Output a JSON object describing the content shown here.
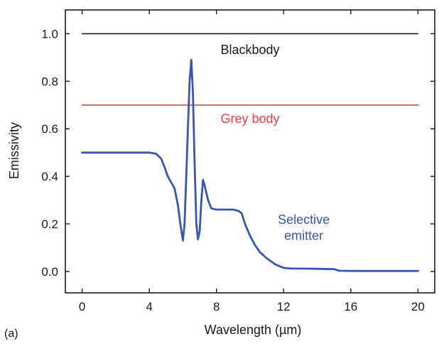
{
  "chart_data": {
    "type": "line",
    "xlabel": "Wavelength (µm)",
    "ylabel": "Emissivity",
    "panel_label": "(a)",
    "xlim": [
      -1,
      21
    ],
    "ylim": [
      -0.09,
      1.1
    ],
    "x_ticks": [
      0,
      4,
      8,
      12,
      16,
      20
    ],
    "y_ticks": [
      0.0,
      0.2,
      0.4,
      0.6,
      0.8,
      1.0
    ],
    "y_tick_labels": [
      "0.0",
      "0.2",
      "0.4",
      "0.6",
      "0.8",
      "1.0"
    ],
    "grid": false,
    "series": [
      {
        "name": "Blackbody",
        "color": "#1a1a1a",
        "x": [
          0,
          20
        ],
        "y": [
          1.0,
          1.0
        ],
        "label_at": [
          10.0,
          0.915
        ]
      },
      {
        "name": "Grey body",
        "color": "#e0434a",
        "x": [
          0,
          20
        ],
        "y": [
          0.7,
          0.7
        ],
        "label_at": [
          10.0,
          0.625
        ]
      },
      {
        "name": "Selective\nemitter",
        "color": "#3a55b0",
        "x": [
          0,
          1,
          2,
          3,
          4,
          4.4,
          4.7,
          4.9,
          5.1,
          5.3,
          5.5,
          5.7,
          5.85,
          6.0,
          6.1,
          6.2,
          6.3,
          6.4,
          6.5,
          6.6,
          6.7,
          6.8,
          6.9,
          7.0,
          7.1,
          7.2,
          7.3,
          7.5,
          7.7,
          8.0,
          8.5,
          9.0,
          9.3,
          9.5,
          9.7,
          10.0,
          10.3,
          10.6,
          11.0,
          11.5,
          12.0,
          12.5,
          13.0,
          14.0,
          15.0,
          15.3,
          16.0,
          18.0,
          20.0
        ],
        "y": [
          0.5,
          0.5,
          0.5,
          0.5,
          0.5,
          0.495,
          0.475,
          0.44,
          0.4,
          0.375,
          0.35,
          0.28,
          0.2,
          0.13,
          0.2,
          0.4,
          0.6,
          0.8,
          0.89,
          0.75,
          0.45,
          0.2,
          0.135,
          0.17,
          0.3,
          0.385,
          0.36,
          0.3,
          0.265,
          0.26,
          0.26,
          0.26,
          0.255,
          0.245,
          0.2,
          0.15,
          0.11,
          0.08,
          0.055,
          0.03,
          0.015,
          0.012,
          0.012,
          0.011,
          0.01,
          0.003,
          0.002,
          0.002,
          0.002
        ],
        "label_at": [
          13.2,
          0.2
        ]
      }
    ]
  }
}
